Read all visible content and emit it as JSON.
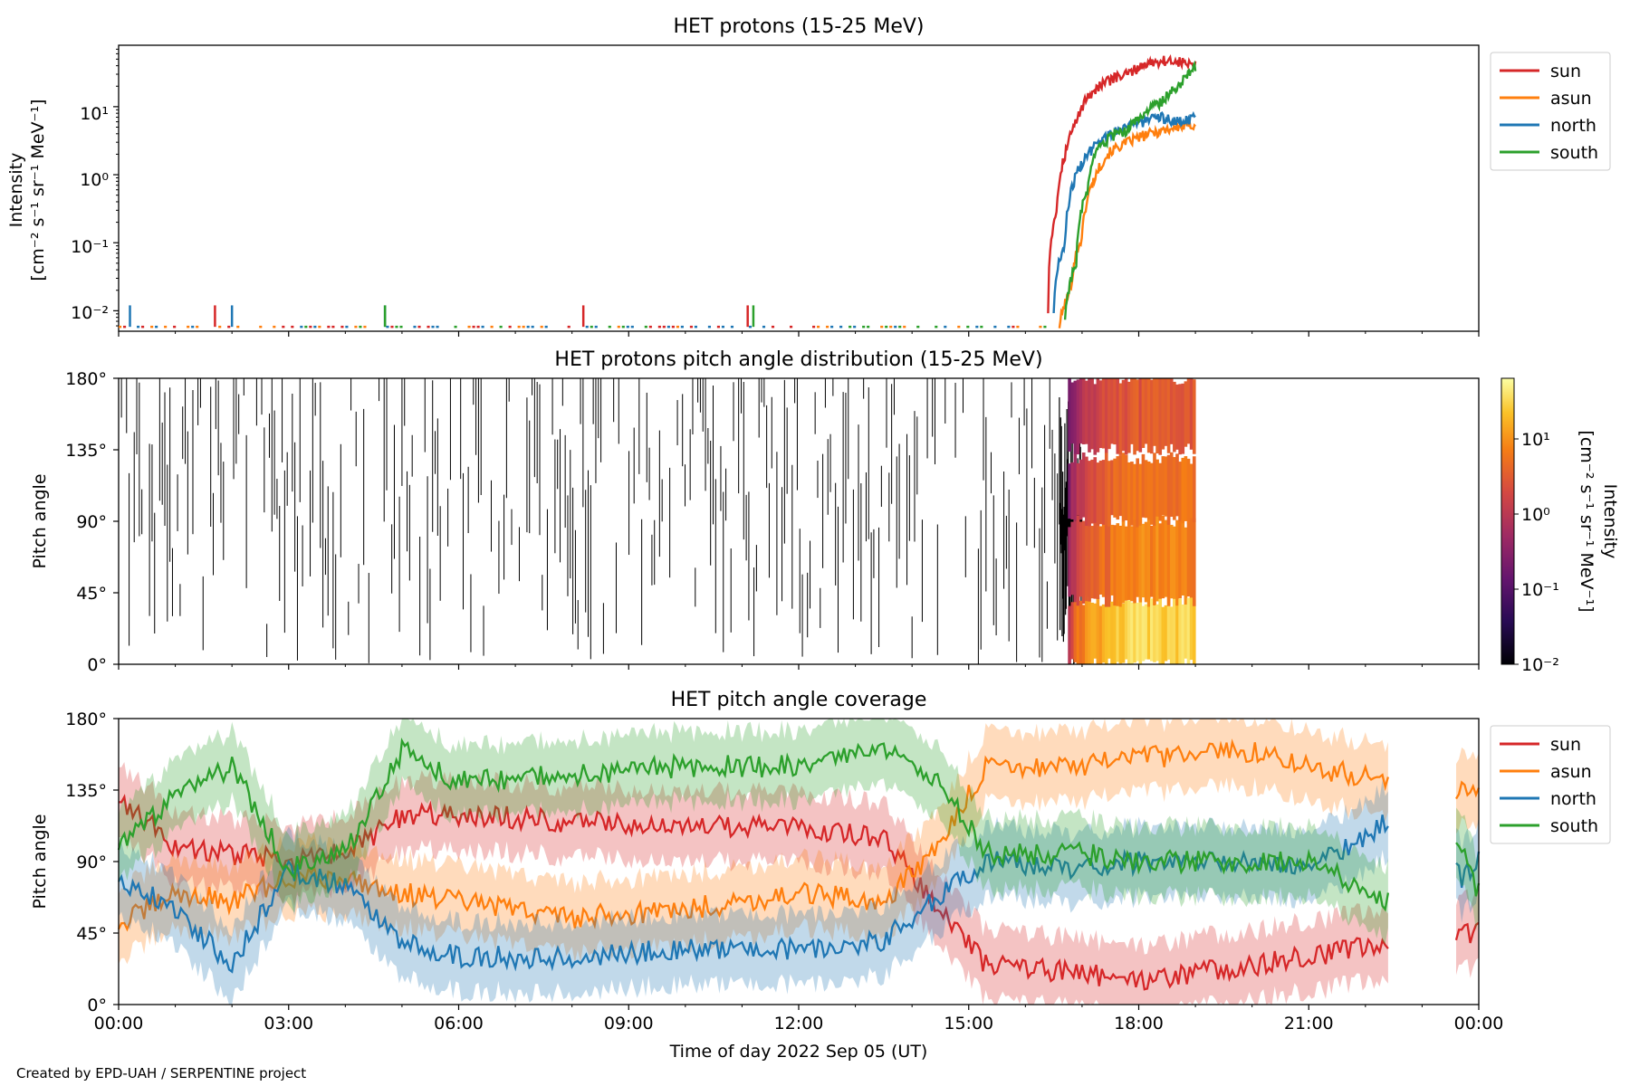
{
  "colors": {
    "sun": "#d62728",
    "asun": "#ff7f0e",
    "north": "#1f77b4",
    "south": "#2ca02c"
  },
  "figure": {
    "credit": "Created by EPD-UAH / SERPENTINE project",
    "xlabel": "Time of day 2022 Sep 05 (UT)",
    "xticks": [
      "00:00",
      "03:00",
      "06:00",
      "09:00",
      "12:00",
      "15:00",
      "18:00",
      "21:00",
      "00:00"
    ]
  },
  "chart_data": [
    {
      "type": "line",
      "title": "HET protons (15-25 MeV)",
      "ylabel": [
        "Intensity",
        "[cm⁻² s⁻¹ sr⁻¹ MeV⁻¹]"
      ],
      "yscale": "log",
      "ylim": [
        0.005,
        80
      ],
      "yticks": [
        "10⁻²",
        "10⁻¹",
        "10⁰",
        "10¹"
      ],
      "x_unit": "hours UT",
      "xlim": [
        0,
        24
      ],
      "legend": "right-outside",
      "series": [
        {
          "name": "sun",
          "x": [
            16.4,
            16.55,
            16.7,
            16.9,
            17.1,
            17.3,
            17.5,
            17.8,
            18.1,
            18.4,
            18.7,
            19.0
          ],
          "y": [
            0.01,
            0.3,
            2.0,
            6.0,
            14,
            20,
            25,
            30,
            42,
            48,
            46,
            40
          ]
        },
        {
          "name": "asun",
          "x": [
            16.6,
            16.8,
            17.0,
            17.2,
            17.5,
            17.8,
            18.1,
            18.4,
            18.7,
            19.0
          ],
          "y": [
            0.006,
            0.02,
            0.12,
            0.8,
            2.2,
            3.0,
            3.8,
            4.5,
            5.0,
            5.5
          ]
        },
        {
          "name": "north",
          "x": [
            16.5,
            16.7,
            16.9,
            17.1,
            17.3,
            17.5,
            17.8,
            18.1,
            18.4,
            18.7,
            19.0
          ],
          "y": [
            0.01,
            0.1,
            1.0,
            2.0,
            3.0,
            4.0,
            5.5,
            6.0,
            7.0,
            6.0,
            7.0
          ]
        },
        {
          "name": "south",
          "x": [
            16.7,
            16.9,
            17.1,
            17.3,
            17.5,
            17.8,
            18.1,
            18.4,
            18.7,
            19.0
          ],
          "y": [
            0.008,
            0.05,
            0.6,
            2.5,
            3.5,
            4.5,
            8.0,
            12,
            20,
            40
          ]
        }
      ],
      "sparse_spikes": {
        "sun": [
          1.7,
          8.2,
          11.1
        ],
        "north": [
          0.2,
          2.0,
          4.7
        ],
        "asun": [],
        "south": [
          4.7,
          11.2
        ]
      }
    },
    {
      "type": "heatmap",
      "title": "HET protons pitch angle distribution (15-25 MeV)",
      "ylabel": "Pitch angle",
      "ylim": [
        0,
        180
      ],
      "yticks": [
        "0°",
        "45°",
        "90°",
        "135°",
        "180°"
      ],
      "colorbar": {
        "label": [
          "Intensity",
          "[cm⁻² s⁻¹ sr⁻¹ MeV⁻¹]"
        ],
        "scale": "log",
        "range": [
          0.01,
          60
        ],
        "ticks": [
          "10⁻²",
          "10⁻¹",
          "10⁰",
          "10¹"
        ],
        "colormap": "inferno"
      },
      "sectors": [
        {
          "name": "sun",
          "pa": [
            0,
            40
          ],
          "intensity": 30
        },
        {
          "name": "north",
          "pa": [
            40,
            90
          ],
          "intensity": 8
        },
        {
          "name": "south",
          "pa": [
            90,
            130
          ],
          "intensity": 5
        },
        {
          "name": "asun",
          "pa": [
            135,
            180
          ],
          "intensity": 3
        }
      ]
    },
    {
      "type": "line",
      "title": "HET pitch angle coverage",
      "ylabel": "Pitch angle",
      "ylim": [
        0,
        180
      ],
      "yticks": [
        "0°",
        "45°",
        "90°",
        "135°",
        "180°"
      ],
      "xlim": [
        0,
        24
      ],
      "legend": "right-outside",
      "series": [
        {
          "name": "sun",
          "x": [
            0,
            1,
            2,
            3,
            4,
            5,
            6,
            8,
            10,
            12,
            13.5,
            14.5,
            15.3,
            17,
            18,
            20,
            21,
            22.4,
            23.7,
            24
          ],
          "y": [
            130,
            100,
            95,
            90,
            95,
            118,
            120,
            115,
            112,
            112,
            105,
            60,
            25,
            20,
            15,
            25,
            30,
            40,
            45,
            45
          ]
        },
        {
          "name": "asun",
          "x": [
            0,
            1,
            2,
            3,
            4,
            5,
            6,
            8,
            10,
            12,
            13.5,
            14.5,
            15.3,
            17,
            18,
            20,
            21,
            22.4,
            23.7,
            24
          ],
          "y": [
            50,
            70,
            65,
            80,
            80,
            70,
            65,
            55,
            60,
            70,
            65,
            100,
            150,
            150,
            155,
            160,
            150,
            140,
            135,
            130
          ]
        },
        {
          "name": "north",
          "x": [
            0,
            1,
            2,
            3,
            4,
            5,
            6,
            8,
            10,
            12,
            13.5,
            14.5,
            15.3,
            17,
            18,
            20,
            21,
            22.4,
            23.7,
            24
          ],
          "y": [
            80,
            60,
            25,
            85,
            75,
            40,
            30,
            30,
            35,
            35,
            40,
            70,
            90,
            85,
            90,
            90,
            85,
            115,
            80,
            90
          ]
        },
        {
          "name": "south",
          "x": [
            0,
            1,
            2,
            3,
            4,
            5,
            6,
            8,
            10,
            12,
            13.5,
            14.5,
            15.3,
            17,
            18,
            20,
            21,
            22.4,
            23.7,
            24
          ],
          "y": [
            100,
            130,
            150,
            85,
            95,
            160,
            140,
            145,
            150,
            150,
            160,
            140,
            95,
            95,
            90,
            90,
            90,
            65,
            100,
            70
          ]
        }
      ],
      "gaps": [
        [
          22.4,
          23.6
        ]
      ]
    }
  ]
}
